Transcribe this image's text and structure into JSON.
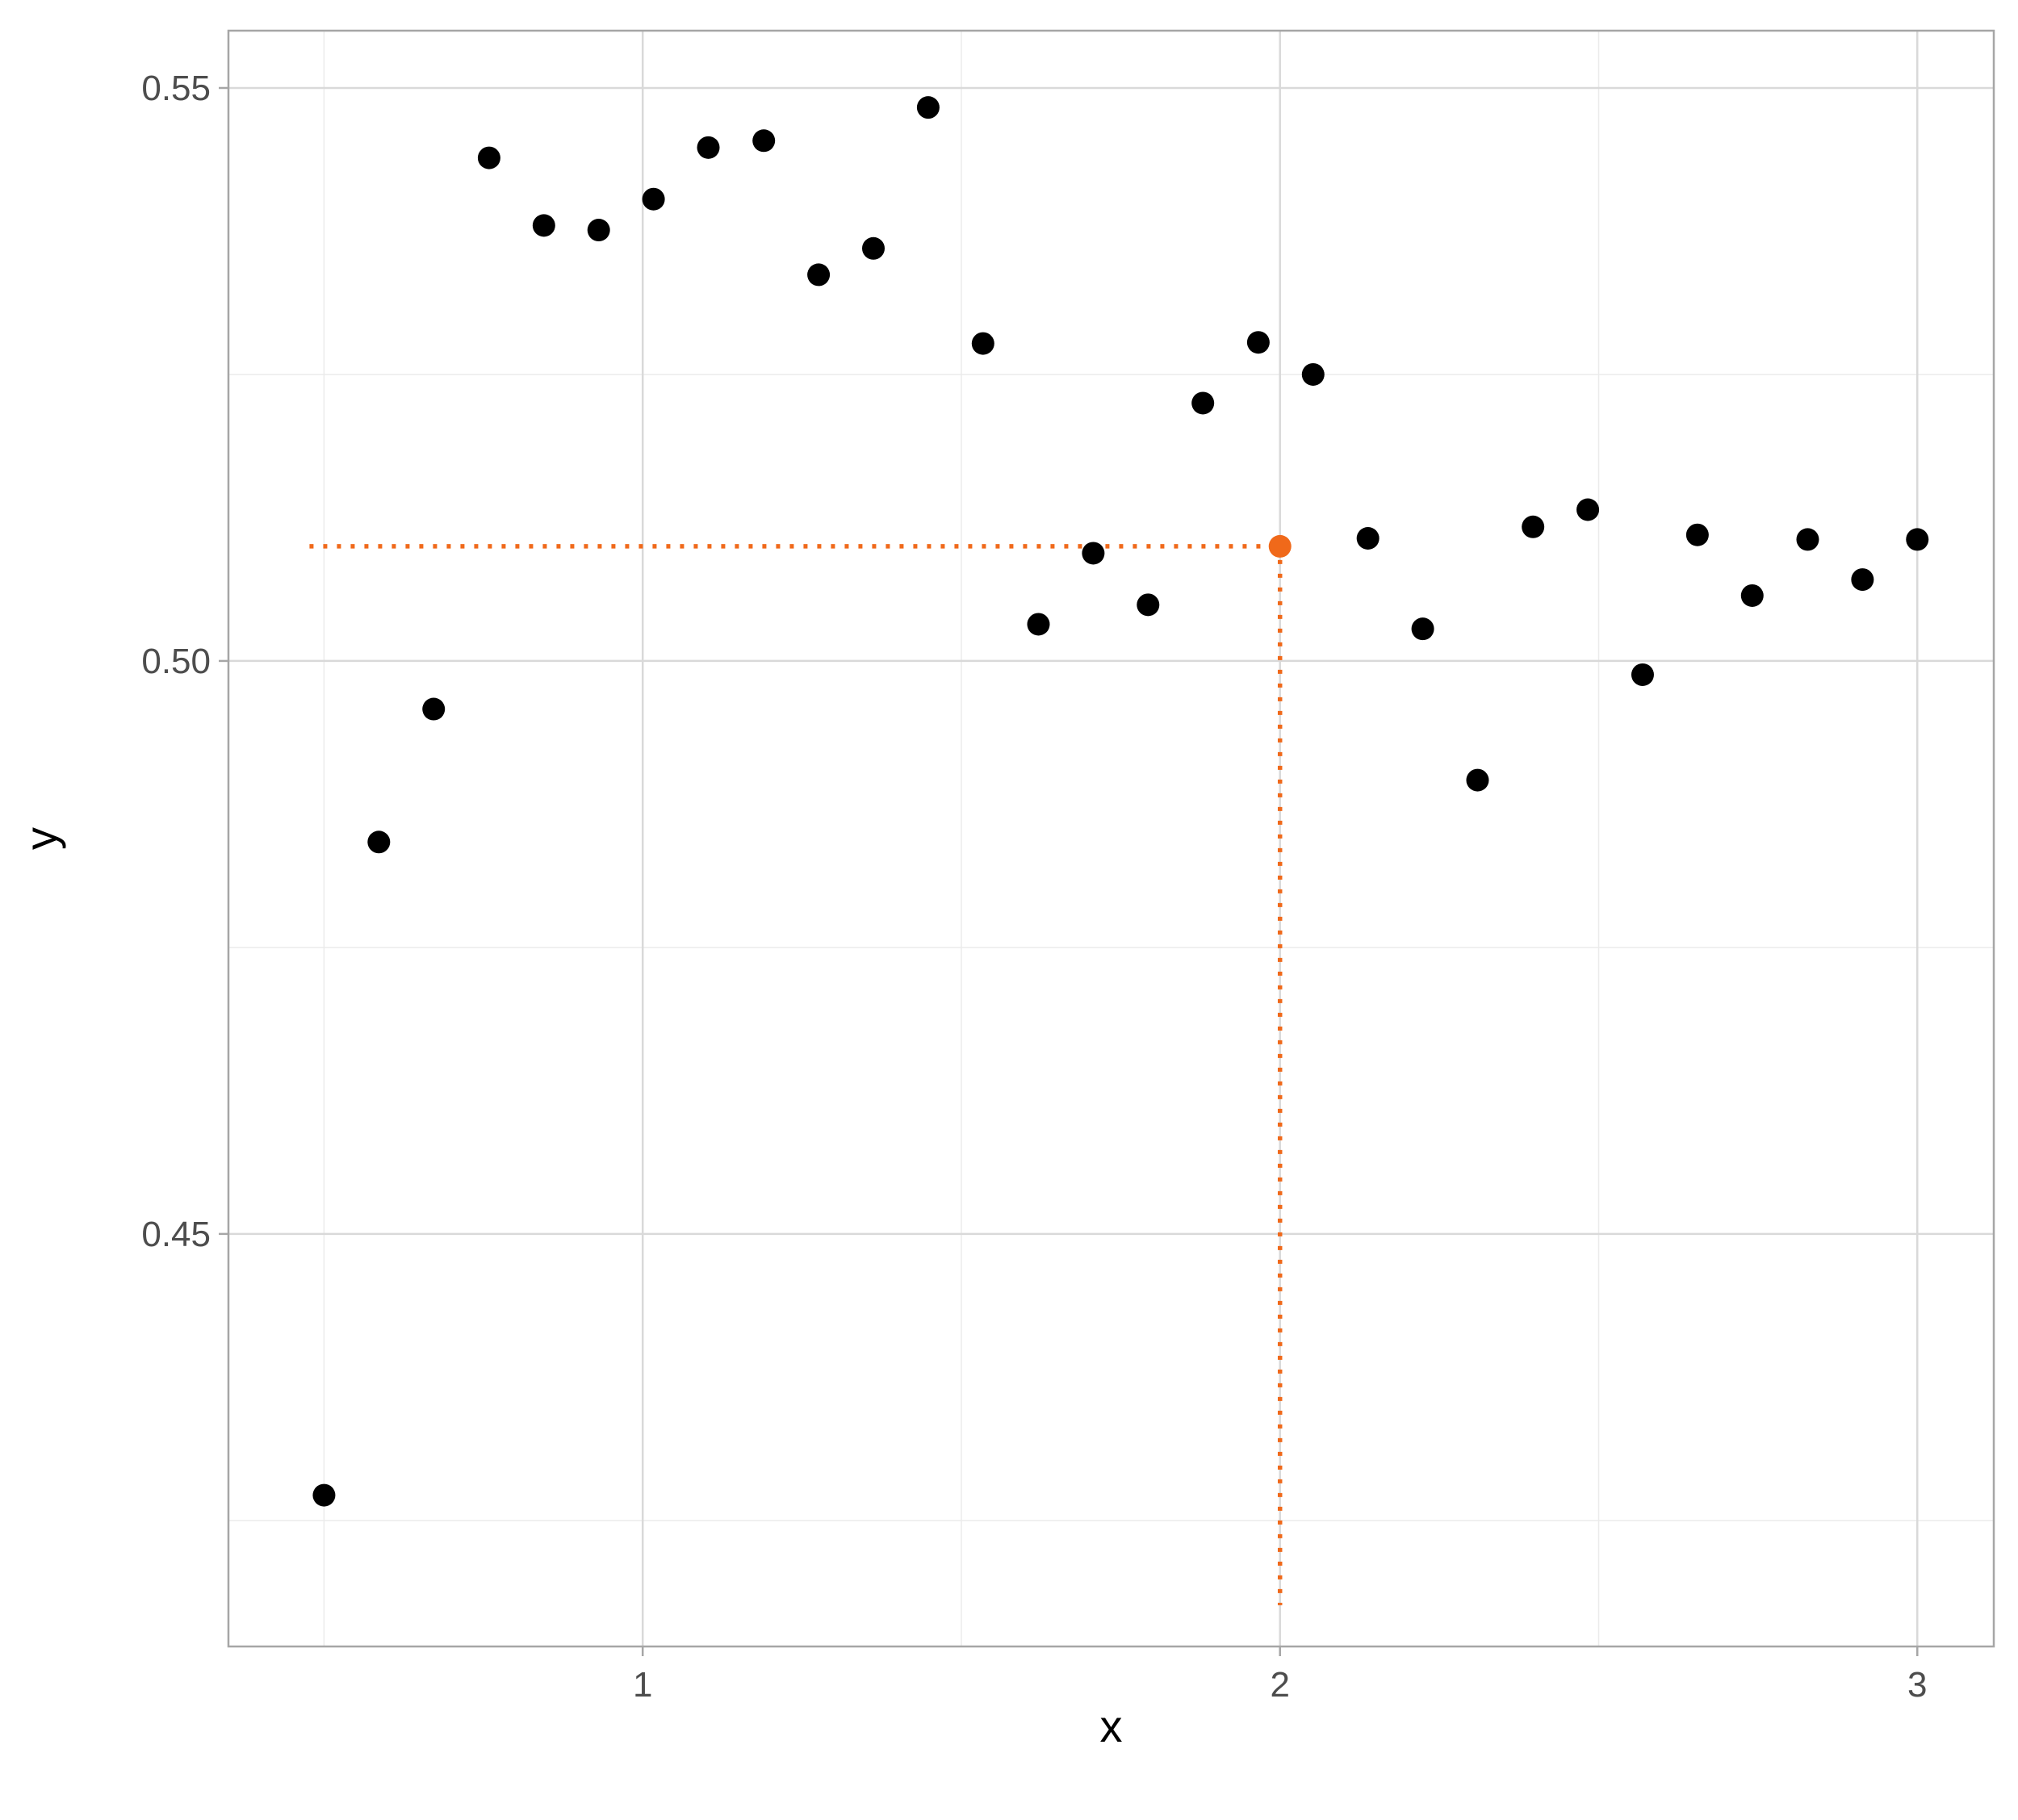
{
  "chart_data": {
    "type": "scatter",
    "title": "",
    "xlabel": "x",
    "ylabel": "y",
    "xlim": [
      0.35,
      3.12
    ],
    "ylim": [
      0.414,
      0.555
    ],
    "x_ticks": [
      1,
      2,
      3
    ],
    "x_tick_labels": [
      "1",
      "2",
      "3"
    ],
    "y_ticks": [
      0.45,
      0.5,
      0.55
    ],
    "y_tick_labels": [
      "0.45",
      "0.50",
      "0.55"
    ],
    "x_minor_ticks": [
      0.5,
      1.5,
      2.5
    ],
    "y_minor_ticks": [
      0.425,
      0.475,
      0.525
    ],
    "grid": true,
    "legend": "none",
    "series": [
      {
        "color": "#000000",
        "points": [
          {
            "x": 0.5,
            "y": 0.4272
          },
          {
            "x": 0.586,
            "y": 0.4842
          },
          {
            "x": 0.672,
            "y": 0.4958
          },
          {
            "x": 0.759,
            "y": 0.5439
          },
          {
            "x": 0.845,
            "y": 0.538
          },
          {
            "x": 0.931,
            "y": 0.5376
          },
          {
            "x": 1.017,
            "y": 0.5403
          },
          {
            "x": 1.103,
            "y": 0.5448
          },
          {
            "x": 1.19,
            "y": 0.5454
          },
          {
            "x": 1.276,
            "y": 0.5337
          },
          {
            "x": 1.362,
            "y": 0.536
          },
          {
            "x": 1.448,
            "y": 0.5483
          },
          {
            "x": 1.534,
            "y": 0.5277
          },
          {
            "x": 1.621,
            "y": 0.5032
          },
          {
            "x": 1.707,
            "y": 0.5094
          },
          {
            "x": 1.793,
            "y": 0.5049
          },
          {
            "x": 1.879,
            "y": 0.5225
          },
          {
            "x": 1.966,
            "y": 0.5278
          },
          {
            "x": 2.052,
            "y": 0.525
          },
          {
            "x": 2.138,
            "y": 0.5107
          },
          {
            "x": 2.224,
            "y": 0.5028
          },
          {
            "x": 2.31,
            "y": 0.4896
          },
          {
            "x": 2.397,
            "y": 0.5117
          },
          {
            "x": 2.483,
            "y": 0.5132
          },
          {
            "x": 2.569,
            "y": 0.4988
          },
          {
            "x": 2.655,
            "y": 0.511
          },
          {
            "x": 2.741,
            "y": 0.5057
          },
          {
            "x": 2.828,
            "y": 0.5106
          },
          {
            "x": 2.914,
            "y": 0.5071
          },
          {
            "x": 3.0,
            "y": 0.5106
          }
        ]
      }
    ],
    "highlight": {
      "x": 2.0,
      "y": 0.51,
      "color": "#f0691a",
      "guide_lines": "dotted"
    }
  }
}
